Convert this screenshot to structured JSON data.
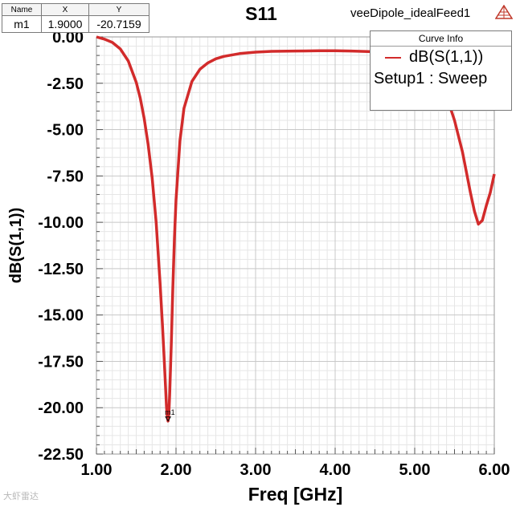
{
  "marker_table": {
    "headers": [
      "Name",
      "X",
      "Y"
    ],
    "rows": [
      {
        "name": "m1",
        "x": "1.9000",
        "y": "-20.7159"
      }
    ]
  },
  "title": "S11",
  "design_name": "veeDipole_idealFeed1",
  "legend": {
    "header": "Curve Info",
    "entries": [
      {
        "label": "dB(S(1,1))",
        "setup": "Setup1 : Sweep",
        "color": "#d22b2b"
      }
    ]
  },
  "watermark": "大虾雷达",
  "chart_data": {
    "type": "line",
    "title": "S11",
    "xlabel": "Freq [GHz]",
    "ylabel": "dB(S(1,1))",
    "xlim": [
      1.0,
      6.0
    ],
    "ylim": [
      -22.5,
      0.0
    ],
    "x_ticks": [
      "1.00",
      "2.00",
      "3.00",
      "4.00",
      "5.00",
      "6.00"
    ],
    "y_ticks": [
      "0.00",
      "-2.50",
      "-5.00",
      "-7.50",
      "-10.00",
      "-12.50",
      "-15.00",
      "-17.50",
      "-20.00",
      "-22.50"
    ],
    "grid": true,
    "legend_position": "top-right",
    "series": [
      {
        "name": "dB(S(1,1))",
        "color": "#d22b2b",
        "x": [
          1.0,
          1.1,
          1.2,
          1.3,
          1.4,
          1.5,
          1.55,
          1.6,
          1.65,
          1.7,
          1.75,
          1.8,
          1.83,
          1.85,
          1.87,
          1.88,
          1.89,
          1.9,
          1.91,
          1.92,
          1.94,
          1.96,
          1.98,
          2.0,
          2.05,
          2.1,
          2.2,
          2.3,
          2.4,
          2.5,
          2.6,
          2.8,
          3.0,
          3.2,
          3.5,
          3.8,
          4.0,
          4.2,
          4.5,
          4.7,
          4.9,
          5.0,
          5.1,
          5.2,
          5.3,
          5.4,
          5.5,
          5.6,
          5.7,
          5.75,
          5.8,
          5.85,
          5.9,
          5.95,
          6.0
        ],
        "y": [
          0.0,
          -0.12,
          -0.3,
          -0.65,
          -1.3,
          -2.45,
          -3.3,
          -4.4,
          -5.8,
          -7.6,
          -10.0,
          -13.3,
          -15.6,
          -17.3,
          -19.0,
          -19.9,
          -20.5,
          -20.72,
          -20.3,
          -19.3,
          -16.6,
          -13.6,
          -10.9,
          -8.8,
          -5.6,
          -3.85,
          -2.4,
          -1.75,
          -1.4,
          -1.18,
          -1.05,
          -0.9,
          -0.82,
          -0.78,
          -0.76,
          -0.75,
          -0.75,
          -0.76,
          -0.8,
          -0.88,
          -1.05,
          -1.2,
          -1.45,
          -1.8,
          -2.4,
          -3.2,
          -4.5,
          -6.2,
          -8.4,
          -9.4,
          -10.1,
          -9.9,
          -9.1,
          -8.4,
          -7.4
        ]
      }
    ],
    "markers": [
      {
        "name": "m1",
        "x": 1.9,
        "y": -20.7159
      }
    ]
  }
}
